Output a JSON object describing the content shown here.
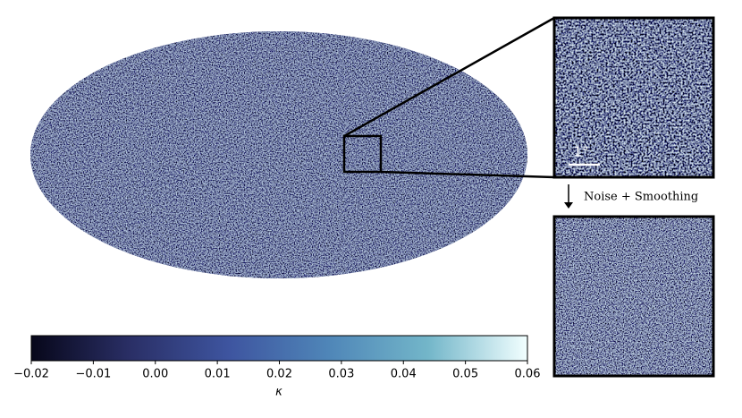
{
  "chart_data": {
    "type": "map",
    "annotations": {
      "scale_bar": "1°",
      "arrow_label": "Noise + Smoothing"
    },
    "colorbar": {
      "label": "κ",
      "lim": [
        -0.02,
        0.06
      ],
      "ticks": [
        {
          "value": -0.02,
          "label": "−0.02"
        },
        {
          "value": -0.01,
          "label": "−0.01"
        },
        {
          "value": 0,
          "label": "0.00"
        },
        0.01,
        0.02,
        0.03,
        0.04,
        0.05,
        0.06
      ],
      "colors": [
        "#07071a",
        "#2a2f66",
        "#3e55a0",
        "#4f86b8",
        "#73b6c9",
        "#f2ffff"
      ]
    }
  }
}
